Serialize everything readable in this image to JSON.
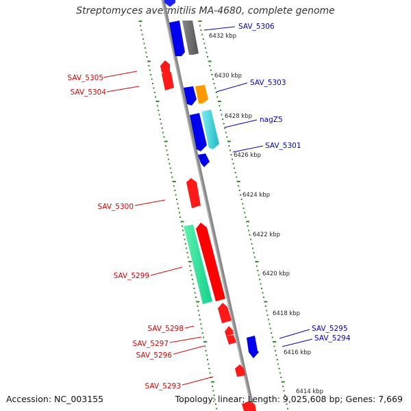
{
  "title": "Streptomyces avermitilis MA-4680, complete genome",
  "footer": {
    "accession": "Accession: NC_003155",
    "summary": "Topology: linear; Length: 9,025,608 bp; Genes: 7,669"
  },
  "colors": {
    "forward_gene": "#ff0000",
    "reverse_gene": "#0000ff",
    "backbone": "#888888",
    "tick": "#2a8a1e",
    "left_label": "#dd0000",
    "right_label": "#0000cc"
  },
  "scale_labels": [
    "6432 kbp",
    "6430 kbp",
    "6428 kbp",
    "6426 kbp",
    "6424 kbp",
    "6422 kbp",
    "6420 kbp",
    "6418 kbp",
    "6416 kbp",
    "6414 kbp"
  ],
  "genes_left": [
    "SAV_5305",
    "SAV_5304",
    "SAV_5300",
    "SAV_5299",
    "SAV_5298",
    "SAV_5297",
    "SAV_5296",
    "SAV_5293"
  ],
  "genes_right": [
    "SAV_5306",
    "SAV_5303",
    "nagZ5",
    "SAV_5301",
    "SAV_5295",
    "SAV_5294"
  ]
}
